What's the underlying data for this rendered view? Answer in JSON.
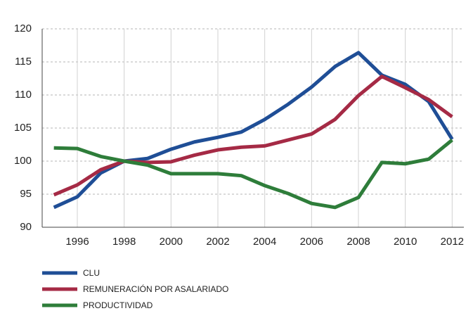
{
  "chart_data": {
    "type": "line",
    "x": [
      1995,
      1996,
      1997,
      1998,
      1999,
      2000,
      2001,
      2002,
      2003,
      2004,
      2005,
      2006,
      2007,
      2008,
      2009,
      2010,
      2011,
      2012
    ],
    "series": [
      {
        "name": "CLU",
        "color": "#1f4e96",
        "values": [
          93.0,
          94.6,
          98.2,
          100,
          100.4,
          101.8,
          102.9,
          103.6,
          104.4,
          106.3,
          108.6,
          111.2,
          114.3,
          116.4,
          113.0,
          111.6,
          109.0,
          103.3
        ]
      },
      {
        "name": "REMUNERACIÓN POR ASALARIADO",
        "color": "#a52a45",
        "values": [
          94.9,
          96.4,
          98.7,
          100,
          99.8,
          99.9,
          100.9,
          101.7,
          102.1,
          102.3,
          103.2,
          104.1,
          106.3,
          109.9,
          112.8,
          111.1,
          109.3,
          106.7
        ]
      },
      {
        "name": "PRODUCTIVIDAD",
        "color": "#2e7d3a",
        "values": [
          102.0,
          101.9,
          100.7,
          100,
          99.4,
          98.1,
          98.1,
          98.1,
          97.8,
          96.3,
          95.1,
          93.6,
          93.0,
          94.5,
          99.8,
          99.6,
          100.3,
          103.2
        ]
      }
    ],
    "xlim": [
      1994.5,
      2012.5
    ],
    "xticks": [
      1996,
      1998,
      2000,
      2002,
      2004,
      2006,
      2008,
      2010,
      2012
    ],
    "ylim": [
      90,
      120
    ],
    "yticks": [
      90,
      95,
      100,
      105,
      110,
      115,
      120
    ],
    "grid": true,
    "legend": "bottom"
  }
}
